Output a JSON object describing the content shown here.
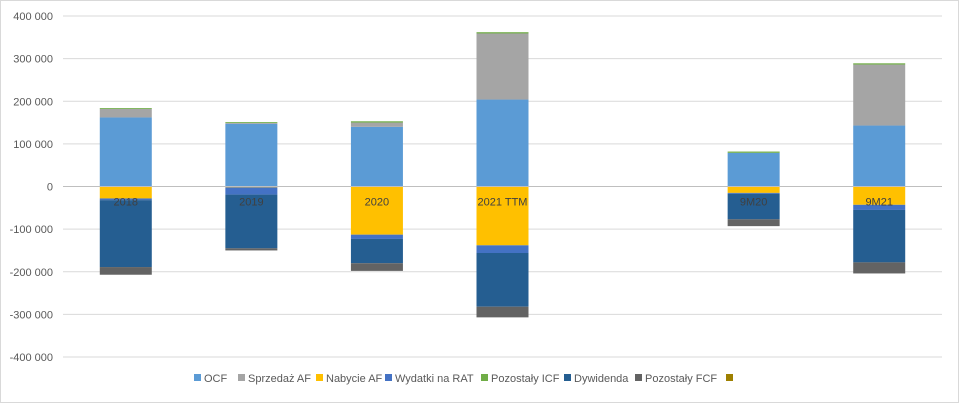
{
  "chart_data": {
    "type": "bar",
    "stacked": true,
    "categories": [
      "2018",
      "2019",
      "2020",
      "2021 TTM",
      "",
      "9M20",
      "9M21"
    ],
    "ylim": [
      -400000,
      400000
    ],
    "yticks": [
      400000,
      300000,
      200000,
      100000,
      0,
      -100000,
      -200000,
      -300000,
      -400000
    ],
    "ytick_labels": [
      "400 000",
      "300 000",
      "200 000",
      "100 000",
      "0",
      "-100 000",
      "-200 000",
      "-300 000",
      "-400 000"
    ],
    "grid": true,
    "legend_position": "bottom",
    "series": [
      {
        "name": "OCF",
        "color": "#5b9bd5",
        "values": [
          162000,
          147000,
          140000,
          204000,
          null,
          79000,
          143000
        ]
      },
      {
        "name": "Sprzedaż AF",
        "color": "#a5a5a5",
        "values": [
          20000,
          2000,
          10000,
          155000,
          null,
          0,
          143000
        ]
      },
      {
        "name": "Nabycie AF",
        "color": "#ffc000",
        "values": [
          -28000,
          -2000,
          -113000,
          -138000,
          null,
          -15000,
          -43000
        ]
      },
      {
        "name": "Wydatki na RAT",
        "color": "#4472c4",
        "values": [
          -4000,
          -17000,
          -10000,
          -18000,
          null,
          -2000,
          -12000
        ]
      },
      {
        "name": "Pozostały ICF",
        "color": "#70ad47",
        "values": [
          2000,
          2000,
          3000,
          3000,
          null,
          3000,
          3000
        ]
      },
      {
        "name": "Dywidenda",
        "color": "#255e91",
        "values": [
          -157000,
          -126000,
          -57000,
          -126000,
          null,
          -60000,
          -123000
        ]
      },
      {
        "name": "Pozostały FCF",
        "color": "#636363",
        "values": [
          -18000,
          -5000,
          -18000,
          -25000,
          null,
          -16000,
          -26000
        ]
      },
      {
        "name": "",
        "color": "#9e8000",
        "values": [
          0,
          0,
          0,
          0,
          null,
          0,
          0
        ]
      }
    ]
  }
}
